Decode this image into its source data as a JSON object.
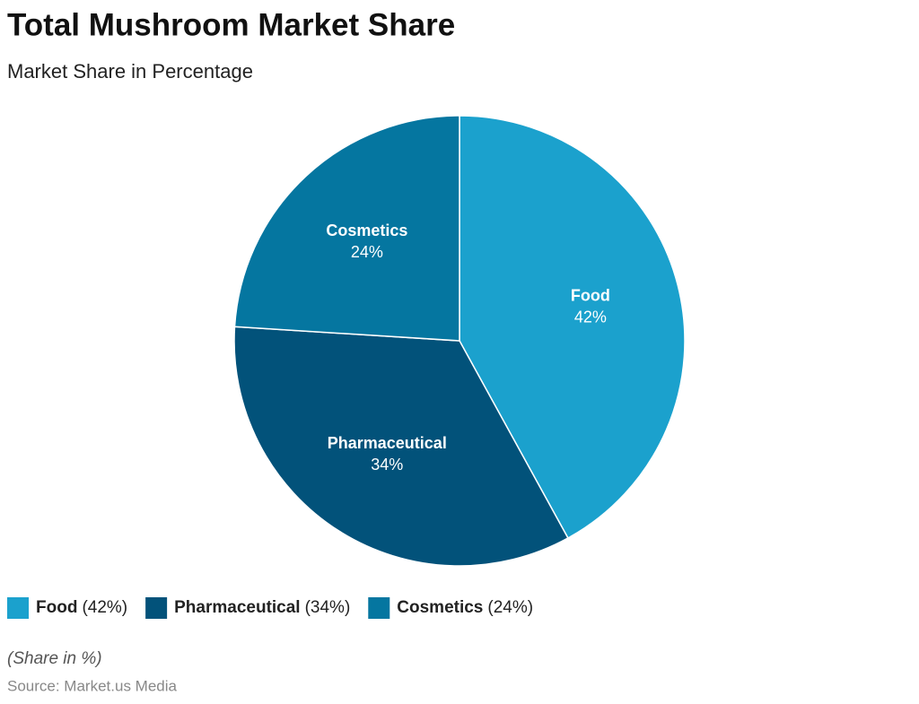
{
  "chart_data": {
    "type": "pie",
    "title": "Total Mushroom Market Share",
    "subtitle": "Market Share in Percentage",
    "categories": [
      "Food",
      "Pharmaceutical",
      "Cosmetics"
    ],
    "values": [
      42,
      34,
      24
    ],
    "value_labels": [
      "42%",
      "34%",
      "24%"
    ],
    "legend_value_labels": [
      "(42%)",
      "(34%)",
      "(24%)"
    ],
    "colors": [
      "#1ba1cd",
      "#02527a",
      "#0576a0"
    ],
    "legend": "bottom-left",
    "note": "(Share in %)",
    "source": "Source: Market.us Media"
  }
}
